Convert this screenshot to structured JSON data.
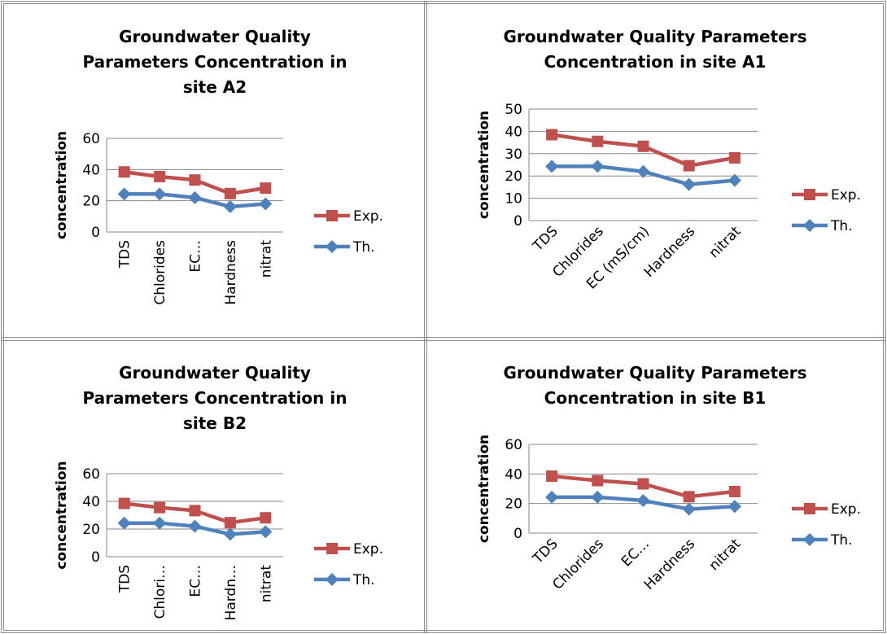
{
  "chart_data": [
    {
      "id": "A2",
      "type": "line",
      "title": "Groundwater Quality Parameters Concentration in site A2",
      "title_lines": [
        "Groundwater Quality",
        "Parameters Concentration in",
        "site A2"
      ],
      "ylabel": "concentration",
      "xlabel": "",
      "categories": [
        "TDS",
        "Chlorides",
        "EC (mS/cm)",
        "Hardness",
        "nitrat"
      ],
      "x_tick_labels": [
        "TDS",
        "Chlorides",
        "EC…",
        "Hardness",
        "nitrat"
      ],
      "x_label_rotation": "vertical",
      "ylim": [
        0,
        60
      ],
      "yticks": [
        0,
        20,
        40,
        60
      ],
      "grid": true,
      "legend_position": "right",
      "series": [
        {
          "name": "Exp.",
          "marker": "square",
          "color": "#C0504D",
          "values": [
            38.5,
            35.5,
            33.3,
            24.6,
            28.1
          ]
        },
        {
          "name": "Th.",
          "marker": "diamond",
          "color": "#4F81BD",
          "values": [
            24.3,
            24.3,
            22.0,
            16.2,
            18.0
          ]
        }
      ]
    },
    {
      "id": "A1",
      "type": "line",
      "title": "Groundwater Quality Parameters Concentration in site A1",
      "title_lines": [
        "Groundwater Quality Parameters",
        "Concentration in site A1"
      ],
      "ylabel": "concentration",
      "xlabel": "",
      "categories": [
        "TDS",
        "Chlorides",
        "EC (mS/cm)",
        "Hardness",
        "nitrat"
      ],
      "x_tick_labels": [
        "TDS",
        "Chlorides",
        "EC (mS/cm)",
        "Hardness",
        "nitrat"
      ],
      "x_label_rotation": "diagonal",
      "ylim": [
        0,
        50
      ],
      "yticks": [
        0,
        10,
        20,
        30,
        40,
        50
      ],
      "grid": true,
      "legend_position": "right",
      "series": [
        {
          "name": "Exp.",
          "marker": "square",
          "color": "#C0504D",
          "values": [
            38.5,
            35.5,
            33.3,
            24.6,
            28.1
          ]
        },
        {
          "name": "Th.",
          "marker": "diamond",
          "color": "#4F81BD",
          "values": [
            24.3,
            24.3,
            22.0,
            16.2,
            18.0
          ]
        }
      ]
    },
    {
      "id": "B2",
      "type": "line",
      "title": "Groundwater Quality Parameters Concentration in site B2",
      "title_lines": [
        "Groundwater Quality",
        "Parameters Concentration in",
        "site B2"
      ],
      "ylabel": "concentration",
      "xlabel": "",
      "categories": [
        "TDS",
        "Chlorides",
        "EC (mS/cm)",
        "Hardness",
        "nitrat"
      ],
      "x_tick_labels": [
        "TDS",
        "Chlori…",
        "EC…",
        "Hardn…",
        "nitrat"
      ],
      "x_label_rotation": "vertical",
      "ylim": [
        0,
        60
      ],
      "yticks": [
        0,
        20,
        40,
        60
      ],
      "grid": true,
      "legend_position": "right",
      "series": [
        {
          "name": "Exp.",
          "marker": "square",
          "color": "#C0504D",
          "values": [
            38.5,
            35.5,
            33.3,
            24.6,
            28.1
          ]
        },
        {
          "name": "Th.",
          "marker": "diamond",
          "color": "#4F81BD",
          "values": [
            24.3,
            24.3,
            22.0,
            16.2,
            18.0
          ]
        }
      ]
    },
    {
      "id": "B1",
      "type": "line",
      "title": "Groundwater Quality Parameters Concentration in site B1",
      "title_lines": [
        "Groundwater Quality Parameters",
        "Concentration in site B1"
      ],
      "ylabel": "concentration",
      "xlabel": "",
      "categories": [
        "TDS",
        "Chlorides",
        "EC (mS/cm)",
        "Hardness",
        "nitrat"
      ],
      "x_tick_labels": [
        "TDS",
        "Chlorides",
        "EC…",
        "Hardness",
        "nitrat"
      ],
      "x_label_rotation": "diagonal",
      "ylim": [
        0,
        60
      ],
      "yticks": [
        0,
        20,
        40,
        60
      ],
      "grid": true,
      "legend_position": "right",
      "series": [
        {
          "name": "Exp.",
          "marker": "square",
          "color": "#C0504D",
          "values": [
            38.5,
            35.5,
            33.3,
            24.6,
            28.1
          ]
        },
        {
          "name": "Th.",
          "marker": "diamond",
          "color": "#4F81BD",
          "values": [
            24.3,
            24.3,
            22.0,
            16.2,
            18.0
          ]
        }
      ]
    }
  ]
}
